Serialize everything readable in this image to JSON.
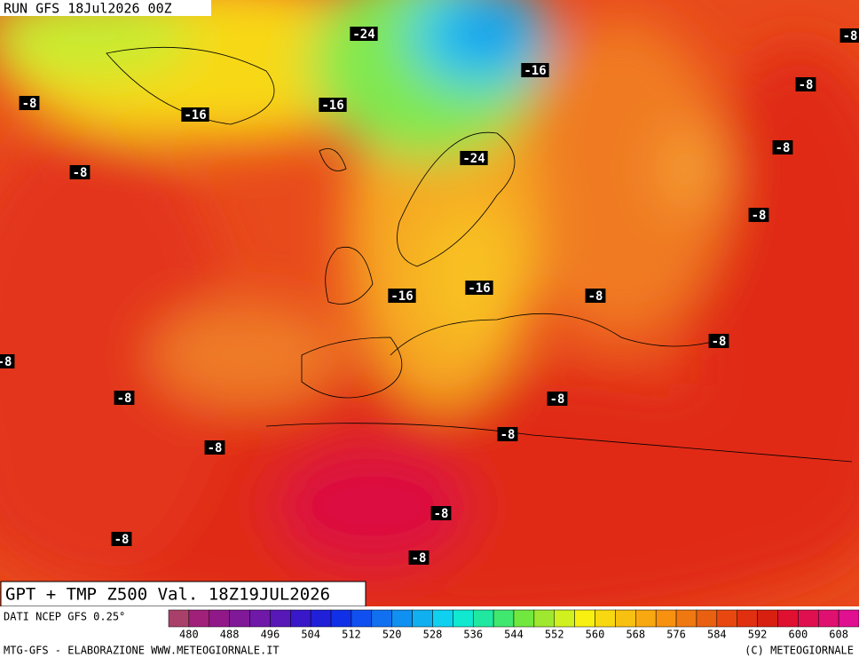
{
  "header": {
    "run": "RUN GFS 18Jul2026 00Z"
  },
  "map": {
    "title": "GPT + TMP Z500 Val. 18Z19JUL2026",
    "contour_labels": [
      "-24",
      "-8",
      "-16",
      "-8",
      "-8",
      "-16",
      "-16",
      "-8",
      "-24",
      "-8",
      "-8",
      "-16",
      "-16",
      "-8",
      "-8",
      "-8",
      "-8",
      "-8",
      "-8",
      "-8",
      "-8",
      "-8",
      "-8"
    ]
  },
  "colorbar": {
    "source": "DATI NCEP GFS 0.25°",
    "colors": [
      "#a8406a",
      "#a0207a",
      "#901888",
      "#801898",
      "#7018a8",
      "#5818b8",
      "#3818c8",
      "#2020d8",
      "#1030e8",
      "#1050f0",
      "#1070f0",
      "#1090f0",
      "#10b0f0",
      "#10d0f0",
      "#10e8d0",
      "#20e8a0",
      "#40e870",
      "#70e840",
      "#a0e830",
      "#d0f020",
      "#f8f010",
      "#f8d810",
      "#f8c010",
      "#f8a810",
      "#f89010",
      "#f07810",
      "#e86010",
      "#e84810",
      "#e03010",
      "#d82010",
      "#e01030",
      "#e01050",
      "#e01070",
      "#e01090"
    ],
    "ticks": [
      480,
      488,
      496,
      504,
      512,
      520,
      528,
      536,
      544,
      552,
      560,
      568,
      576,
      584,
      592,
      600,
      608
    ]
  },
  "footer": {
    "left": "MTG-GFS - ELABORAZIONE WWW.METEOGIORNALE.IT",
    "right": "(C) METEOGIORNALE"
  }
}
